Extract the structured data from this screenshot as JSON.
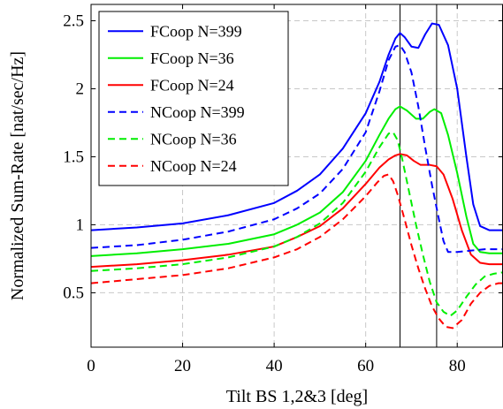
{
  "chart_data": {
    "type": "line",
    "title": "",
    "xlabel": "Tilt BS 1,2&3 [deg]",
    "ylabel": "Normalized Sum-Rate [nat/sec/Hz]",
    "xlim": [
      0,
      90
    ],
    "ylim": [
      0.1,
      2.62
    ],
    "xticks": [
      0,
      20,
      40,
      60,
      80
    ],
    "xtick_labels": [
      "0",
      "20",
      "40",
      "60",
      "80"
    ],
    "yticks": [
      0.5,
      1,
      1.5,
      2,
      2.5
    ],
    "ytick_labels": [
      "0.5",
      "1",
      "1.5",
      "2",
      "2.5"
    ],
    "grid": true,
    "legend_position": "top-left",
    "vlines": [
      67.5,
      75.5
    ],
    "series": [
      {
        "name": "FCoop N=399",
        "color": "#0000ff",
        "dash": "solid",
        "points": [
          [
            0,
            0.96
          ],
          [
            10,
            0.98
          ],
          [
            20,
            1.01
          ],
          [
            30,
            1.07
          ],
          [
            40,
            1.16
          ],
          [
            45,
            1.25
          ],
          [
            50,
            1.37
          ],
          [
            55,
            1.56
          ],
          [
            60,
            1.82
          ],
          [
            63,
            2.05
          ],
          [
            65,
            2.25
          ],
          [
            66.5,
            2.37
          ],
          [
            67.5,
            2.41
          ],
          [
            68.5,
            2.38
          ],
          [
            70,
            2.31
          ],
          [
            71.5,
            2.3
          ],
          [
            73,
            2.4
          ],
          [
            74.5,
            2.48
          ],
          [
            76,
            2.47
          ],
          [
            78,
            2.32
          ],
          [
            80,
            2.0
          ],
          [
            82,
            1.5
          ],
          [
            83.5,
            1.15
          ],
          [
            85,
            0.99
          ],
          [
            87,
            0.96
          ],
          [
            90,
            0.96
          ]
        ]
      },
      {
        "name": "FCoop N=36",
        "color": "#00ee00",
        "dash": "solid",
        "points": [
          [
            0,
            0.77
          ],
          [
            10,
            0.79
          ],
          [
            20,
            0.82
          ],
          [
            30,
            0.86
          ],
          [
            40,
            0.93
          ],
          [
            45,
            1.0
          ],
          [
            50,
            1.09
          ],
          [
            55,
            1.24
          ],
          [
            60,
            1.47
          ],
          [
            63,
            1.66
          ],
          [
            65,
            1.78
          ],
          [
            66.5,
            1.85
          ],
          [
            67.5,
            1.87
          ],
          [
            69,
            1.84
          ],
          [
            71,
            1.78
          ],
          [
            72.5,
            1.78
          ],
          [
            74,
            1.83
          ],
          [
            75,
            1.85
          ],
          [
            76.5,
            1.82
          ],
          [
            78,
            1.66
          ],
          [
            80,
            1.38
          ],
          [
            82,
            1.06
          ],
          [
            83.5,
            0.86
          ],
          [
            85,
            0.8
          ],
          [
            87,
            0.79
          ],
          [
            90,
            0.79
          ]
        ]
      },
      {
        "name": "FCoop N=24",
        "color": "#ff0000",
        "dash": "solid",
        "points": [
          [
            0,
            0.69
          ],
          [
            10,
            0.71
          ],
          [
            20,
            0.74
          ],
          [
            30,
            0.78
          ],
          [
            40,
            0.84
          ],
          [
            45,
            0.91
          ],
          [
            50,
            0.99
          ],
          [
            55,
            1.12
          ],
          [
            60,
            1.3
          ],
          [
            63,
            1.42
          ],
          [
            65,
            1.48
          ],
          [
            66.5,
            1.51
          ],
          [
            67.5,
            1.52
          ],
          [
            69,
            1.51
          ],
          [
            70.5,
            1.47
          ],
          [
            72,
            1.44
          ],
          [
            74,
            1.44
          ],
          [
            75.5,
            1.43
          ],
          [
            77,
            1.37
          ],
          [
            79,
            1.19
          ],
          [
            81,
            0.96
          ],
          [
            83,
            0.78
          ],
          [
            85,
            0.72
          ],
          [
            87,
            0.71
          ],
          [
            90,
            0.71
          ]
        ]
      },
      {
        "name": "NCoop N=399",
        "color": "#0000ff",
        "dash": "dashed",
        "points": [
          [
            0,
            0.83
          ],
          [
            10,
            0.85
          ],
          [
            20,
            0.89
          ],
          [
            30,
            0.95
          ],
          [
            40,
            1.04
          ],
          [
            45,
            1.12
          ],
          [
            50,
            1.23
          ],
          [
            55,
            1.41
          ],
          [
            60,
            1.68
          ],
          [
            63,
            1.98
          ],
          [
            65,
            2.21
          ],
          [
            66.5,
            2.31
          ],
          [
            67.5,
            2.32
          ],
          [
            68.5,
            2.27
          ],
          [
            70,
            2.12
          ],
          [
            71.5,
            1.87
          ],
          [
            73,
            1.57
          ],
          [
            74.5,
            1.29
          ],
          [
            76,
            1.04
          ],
          [
            77,
            0.88
          ],
          [
            78,
            0.8
          ],
          [
            80,
            0.8
          ],
          [
            83,
            0.81
          ],
          [
            86,
            0.82
          ],
          [
            90,
            0.82
          ]
        ]
      },
      {
        "name": "NCoop N=36",
        "color": "#00ee00",
        "dash": "dashed",
        "points": [
          [
            0,
            0.66
          ],
          [
            10,
            0.68
          ],
          [
            20,
            0.71
          ],
          [
            30,
            0.76
          ],
          [
            40,
            0.84
          ],
          [
            45,
            0.91
          ],
          [
            50,
            1.01
          ],
          [
            55,
            1.16
          ],
          [
            60,
            1.39
          ],
          [
            63,
            1.57
          ],
          [
            65,
            1.67
          ],
          [
            66,
            1.68
          ],
          [
            67,
            1.62
          ],
          [
            68,
            1.48
          ],
          [
            69.5,
            1.24
          ],
          [
            71,
            1.0
          ],
          [
            72.5,
            0.78
          ],
          [
            74,
            0.58
          ],
          [
            75.5,
            0.43
          ],
          [
            77,
            0.36
          ],
          [
            78.5,
            0.33
          ],
          [
            80,
            0.37
          ],
          [
            82,
            0.47
          ],
          [
            84,
            0.56
          ],
          [
            86,
            0.62
          ],
          [
            88,
            0.64
          ],
          [
            90,
            0.65
          ]
        ]
      },
      {
        "name": "NCoop N=24",
        "color": "#ff0000",
        "dash": "dashed",
        "points": [
          [
            0,
            0.57
          ],
          [
            10,
            0.6
          ],
          [
            20,
            0.63
          ],
          [
            30,
            0.68
          ],
          [
            40,
            0.76
          ],
          [
            45,
            0.82
          ],
          [
            50,
            0.91
          ],
          [
            55,
            1.04
          ],
          [
            60,
            1.21
          ],
          [
            62.5,
            1.31
          ],
          [
            64,
            1.36
          ],
          [
            65,
            1.37
          ],
          [
            66,
            1.32
          ],
          [
            67,
            1.22
          ],
          [
            68.5,
            1.04
          ],
          [
            70,
            0.85
          ],
          [
            71.5,
            0.68
          ],
          [
            73,
            0.53
          ],
          [
            74.5,
            0.4
          ],
          [
            76,
            0.31
          ],
          [
            77.5,
            0.25
          ],
          [
            79,
            0.24
          ],
          [
            81,
            0.3
          ],
          [
            83,
            0.42
          ],
          [
            85,
            0.5
          ],
          [
            87,
            0.55
          ],
          [
            89,
            0.57
          ],
          [
            90,
            0.57
          ]
        ]
      }
    ]
  }
}
